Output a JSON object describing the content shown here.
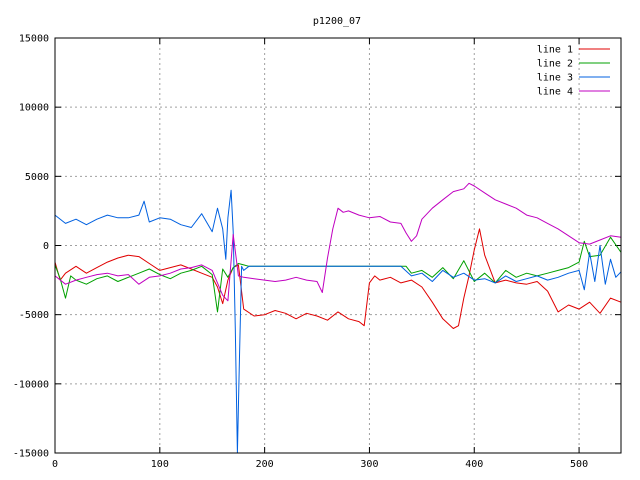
{
  "chart_data": {
    "type": "line",
    "title": "p1200_07",
    "xlabel": "",
    "ylabel": "",
    "xlim": [
      0,
      540
    ],
    "ylim": [
      -15000,
      15000
    ],
    "xticks": [
      0,
      100,
      200,
      300,
      400,
      500
    ],
    "yticks": [
      -15000,
      -10000,
      -5000,
      0,
      5000,
      10000,
      15000
    ],
    "grid": true,
    "legend": "top-right",
    "series": [
      {
        "name": "line 1",
        "color": "#e00000",
        "x": [
          0,
          5,
          10,
          20,
          30,
          40,
          50,
          60,
          70,
          80,
          90,
          100,
          110,
          120,
          130,
          140,
          150,
          155,
          160,
          165,
          170,
          175,
          180,
          190,
          200,
          210,
          220,
          230,
          240,
          250,
          260,
          270,
          280,
          290,
          295,
          300,
          305,
          310,
          320,
          330,
          340,
          350,
          360,
          370,
          380,
          385,
          390,
          395,
          400,
          405,
          410,
          420,
          430,
          440,
          450,
          460,
          470,
          480,
          490,
          500,
          510,
          520,
          530,
          540
        ],
        "y": [
          -1200,
          -2500,
          -2000,
          -1500,
          -2000,
          -1600,
          -1200,
          -900,
          -700,
          -800,
          -1300,
          -1800,
          -1600,
          -1400,
          -1700,
          -2000,
          -2300,
          -3000,
          -4200,
          -2500,
          -1600,
          -1400,
          -4600,
          -5100,
          -5000,
          -4700,
          -4900,
          -5300,
          -4900,
          -5100,
          -5400,
          -4800,
          -5300,
          -5500,
          -5800,
          -2700,
          -2200,
          -2500,
          -2300,
          -2700,
          -2500,
          -3000,
          -4100,
          -5300,
          -6000,
          -5800,
          -3800,
          -2200,
          -300,
          1200,
          -700,
          -2700,
          -2500,
          -2700,
          -2800,
          -2600,
          -3300,
          -4800,
          -4300,
          -4600,
          -4100,
          -4900,
          -3800,
          -4100
        ]
      },
      {
        "name": "line 2",
        "color": "#00a000",
        "x": [
          0,
          5,
          10,
          15,
          20,
          30,
          40,
          50,
          60,
          70,
          80,
          90,
          100,
          110,
          120,
          130,
          140,
          150,
          155,
          160,
          165,
          170,
          175,
          180,
          185,
          190,
          200,
          210,
          220,
          230,
          240,
          250,
          260,
          270,
          280,
          290,
          300,
          310,
          320,
          330,
          335,
          340,
          350,
          360,
          370,
          380,
          390,
          400,
          410,
          420,
          430,
          440,
          450,
          460,
          470,
          480,
          490,
          500,
          505,
          510,
          520,
          530,
          540
        ],
        "y": [
          -1400,
          -2400,
          -3800,
          -2200,
          -2500,
          -2800,
          -2400,
          -2200,
          -2600,
          -2300,
          -2000,
          -1700,
          -2100,
          -2400,
          -2000,
          -1800,
          -1500,
          -2100,
          -4800,
          -1700,
          -2300,
          -1600,
          -1300,
          -1400,
          -1500,
          -1500,
          -1500,
          -1500,
          -1500,
          -1500,
          -1500,
          -1500,
          -1500,
          -1500,
          -1500,
          -1500,
          -1500,
          -1500,
          -1500,
          -1500,
          -1500,
          -2000,
          -1800,
          -2300,
          -1600,
          -2400,
          -1100,
          -2600,
          -2000,
          -2700,
          -1800,
          -2300,
          -2000,
          -2200,
          -2000,
          -1800,
          -1600,
          -1200,
          300,
          -800,
          -700,
          600,
          -500
        ]
      },
      {
        "name": "line 3",
        "color": "#0060e0",
        "x": [
          0,
          10,
          20,
          30,
          40,
          50,
          60,
          70,
          80,
          85,
          90,
          100,
          110,
          120,
          130,
          140,
          150,
          155,
          160,
          163,
          165,
          168,
          170,
          172,
          174,
          176,
          178,
          180,
          185,
          190,
          200,
          210,
          220,
          230,
          240,
          250,
          260,
          270,
          280,
          290,
          300,
          310,
          320,
          330,
          340,
          350,
          360,
          370,
          380,
          390,
          400,
          410,
          420,
          430,
          440,
          450,
          460,
          470,
          480,
          490,
          500,
          505,
          510,
          515,
          520,
          525,
          530,
          535,
          540
        ],
        "y": [
          2200,
          1600,
          1900,
          1500,
          1900,
          2200,
          2000,
          2000,
          2200,
          3200,
          1700,
          2000,
          1900,
          1500,
          1300,
          2300,
          1000,
          2700,
          1200,
          -1000,
          2000,
          4000,
          1000,
          -6000,
          -15000,
          -8000,
          -1500,
          -1800,
          -1500,
          -1500,
          -1500,
          -1500,
          -1500,
          -1500,
          -1500,
          -1500,
          -1500,
          -1500,
          -1500,
          -1500,
          -1500,
          -1500,
          -1500,
          -1500,
          -2200,
          -2000,
          -2600,
          -1800,
          -2300,
          -2000,
          -2500,
          -2400,
          -2700,
          -2200,
          -2600,
          -2400,
          -2200,
          -2500,
          -2300,
          -2000,
          -1800,
          -3200,
          -500,
          -2600,
          0,
          -2800,
          -1000,
          -2300,
          -1900
        ]
      },
      {
        "name": "line 4",
        "color": "#c000c0",
        "x": [
          0,
          10,
          20,
          30,
          40,
          50,
          60,
          70,
          80,
          90,
          100,
          110,
          120,
          130,
          140,
          150,
          160,
          165,
          170,
          175,
          180,
          190,
          200,
          210,
          220,
          230,
          240,
          250,
          255,
          260,
          265,
          270,
          275,
          280,
          290,
          300,
          310,
          320,
          330,
          335,
          340,
          345,
          350,
          360,
          370,
          380,
          390,
          395,
          400,
          410,
          420,
          430,
          440,
          450,
          460,
          470,
          480,
          490,
          500,
          510,
          520,
          530,
          540
        ],
        "y": [
          -2200,
          -2800,
          -2500,
          -2300,
          -2100,
          -2000,
          -2200,
          -2100,
          -2800,
          -2300,
          -2200,
          -2000,
          -1700,
          -1600,
          -1400,
          -1800,
          -3600,
          -4000,
          800,
          -2200,
          -2300,
          -2400,
          -2500,
          -2600,
          -2500,
          -2300,
          -2500,
          -2600,
          -3400,
          -900,
          1200,
          2700,
          2400,
          2500,
          2200,
          2000,
          2100,
          1700,
          1600,
          900,
          300,
          700,
          1900,
          2700,
          3300,
          3900,
          4100,
          4500,
          4300,
          3800,
          3300,
          3000,
          2700,
          2200,
          2000,
          1600,
          1200,
          700,
          200,
          100,
          400,
          700,
          600
        ]
      }
    ]
  }
}
